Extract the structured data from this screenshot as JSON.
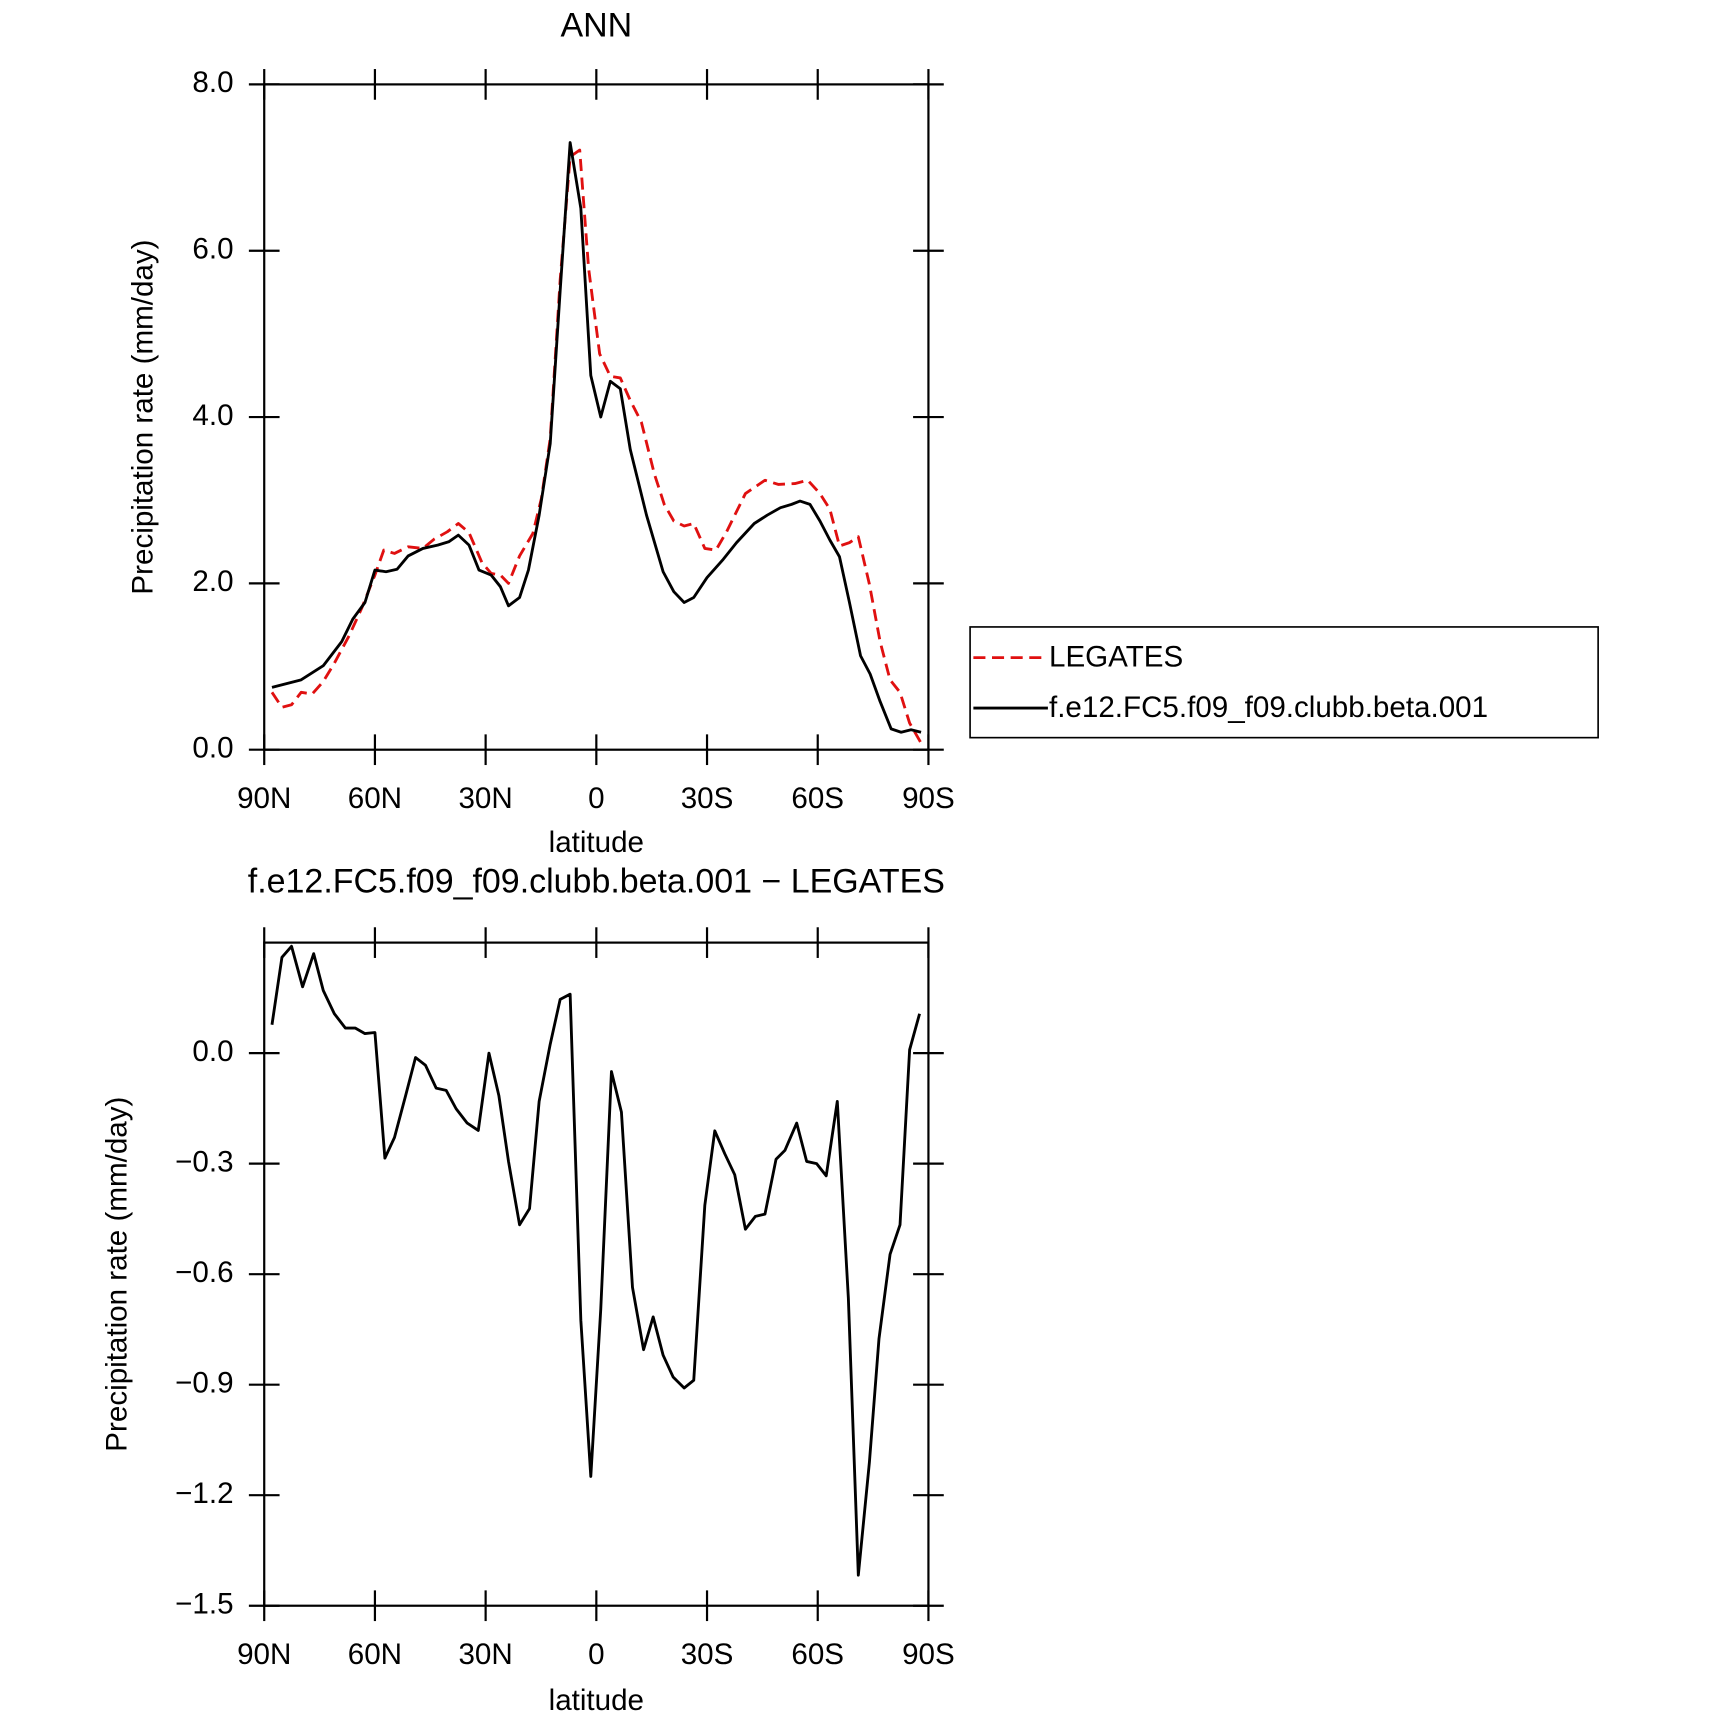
{
  "chart_data": [
    {
      "type": "line",
      "title": "ANN",
      "xlabel": "latitude",
      "ylabel": "Precipitation rate (mm/day)",
      "xlim": [
        90,
        -90
      ],
      "xticks": [
        {
          "value": 90,
          "label": "90N"
        },
        {
          "value": 60,
          "label": "60N"
        },
        {
          "value": 30,
          "label": "30N"
        },
        0,
        {
          "value": -30,
          "label": "30S"
        },
        {
          "value": -60,
          "label": "60S"
        },
        {
          "value": -90,
          "label": "90S"
        }
      ],
      "ylim": [
        0,
        8
      ],
      "yticks": [
        {
          "value": 0,
          "label": "0.0"
        },
        {
          "value": 2,
          "label": "2.0"
        },
        {
          "value": 4,
          "label": "4.0"
        },
        {
          "value": 6,
          "label": "6.0"
        },
        {
          "value": 8,
          "label": "8.0"
        }
      ],
      "legend": "right",
      "series": [
        {
          "name": "LEGATES",
          "color": "#e01010",
          "dash": "dashed",
          "x": [
            87.9,
            85.2,
            82.6,
            80,
            77,
            74,
            71,
            67,
            63.6,
            60,
            57.6,
            54.7,
            51,
            47,
            44,
            40.4,
            37.4,
            34.5,
            31,
            28.5,
            26,
            23.8,
            20.8,
            17.2,
            14.9,
            12.5,
            9.8,
            7.1,
            4.5,
            2.1,
            -0.9,
            -3.8,
            -6.5,
            -9.2,
            -12.2,
            -15.7,
            -18.4,
            -21,
            -23.8,
            -26.4,
            -29.4,
            -32.4,
            -35.3,
            -40.4,
            -45.7,
            -49.3,
            -53.8,
            -57.3,
            -60.6,
            -63.3,
            -65.9,
            -68.6,
            -71,
            -74,
            -76.9,
            -79.6,
            -82.3,
            -84.9,
            -88
          ],
          "values": [
            0.69,
            0.51,
            0.54,
            0.69,
            0.67,
            0.82,
            1.04,
            1.37,
            1.7,
            2.1,
            2.4,
            2.36,
            2.44,
            2.42,
            2.53,
            2.62,
            2.72,
            2.61,
            2.25,
            2.12,
            2.1,
            2.0,
            2.33,
            2.6,
            3.02,
            3.74,
            5.65,
            7.13,
            7.21,
            5.79,
            4.76,
            4.49,
            4.47,
            4.2,
            3.94,
            3.32,
            2.95,
            2.75,
            2.69,
            2.72,
            2.42,
            2.4,
            2.62,
            3.08,
            3.24,
            3.19,
            3.2,
            3.24,
            3.08,
            2.89,
            2.45,
            2.49,
            2.56,
            1.99,
            1.3,
            0.84,
            0.69,
            0.32,
            0.08
          ]
        },
        {
          "name": "f.e12.FC5.f09_f09.clubb.beta.001",
          "color": "#000000",
          "dash": "solid",
          "x": [
            87.9,
            80,
            74,
            69,
            66,
            62.7,
            60,
            57,
            54,
            51,
            47,
            43,
            40,
            37.4,
            34.5,
            31.8,
            28.5,
            26,
            23.8,
            20.8,
            18.4,
            15.5,
            12.5,
            9.8,
            7.1,
            4.2,
            1.5,
            -1.2,
            -3.8,
            -6.5,
            -9.2,
            -13.6,
            -18.1,
            -21,
            -23.8,
            -26.4,
            -30,
            -34.4,
            -38,
            -42.8,
            -46.3,
            -49.9,
            -52.9,
            -55.2,
            -57.9,
            -60.6,
            -63.3,
            -65.9,
            -68.6,
            -71.6,
            -74.2,
            -76.9,
            -79.9,
            -82.6,
            -85.3,
            -88
          ],
          "values": [
            0.75,
            0.84,
            1.01,
            1.3,
            1.57,
            1.77,
            2.16,
            2.14,
            2.17,
            2.33,
            2.42,
            2.46,
            2.5,
            2.58,
            2.46,
            2.16,
            2.1,
            1.96,
            1.73,
            1.83,
            2.16,
            2.82,
            3.68,
            5.52,
            7.3,
            6.51,
            4.5,
            4.0,
            4.43,
            4.34,
            3.61,
            2.82,
            2.14,
            1.9,
            1.77,
            1.83,
            2.07,
            2.29,
            2.49,
            2.72,
            2.82,
            2.91,
            2.95,
            2.99,
            2.95,
            2.75,
            2.52,
            2.32,
            1.77,
            1.13,
            0.91,
            0.58,
            0.25,
            0.21,
            0.24,
            0.21
          ]
        }
      ]
    },
    {
      "type": "line",
      "title": "f.e12.FC5.f09_f09.clubb.beta.001 − LEGATES",
      "xlabel": "latitude",
      "ylabel": "Precipitation rate (mm/day)",
      "xlim": [
        90,
        -90
      ],
      "xticks": [
        {
          "value": 90,
          "label": "90N"
        },
        {
          "value": 60,
          "label": "60N"
        },
        {
          "value": 30,
          "label": "30N"
        },
        0,
        {
          "value": -30,
          "label": "30S"
        },
        {
          "value": -60,
          "label": "60S"
        },
        {
          "value": -90,
          "label": "90S"
        }
      ],
      "ylim": [
        -1.5,
        0.3
      ],
      "yticks": [
        {
          "value": -1.5,
          "label": "−1.5"
        },
        {
          "value": -1.2,
          "label": "−1.2"
        },
        {
          "value": -0.9,
          "label": "−0.9"
        },
        {
          "value": -0.6,
          "label": "−0.6"
        },
        {
          "value": -0.3,
          "label": "−0.3"
        },
        {
          "value": 0,
          "label": "0.0"
        }
      ],
      "series": [
        {
          "color": "#000000",
          "dash": "solid",
          "x": [
            87.9,
            85.2,
            82.6,
            79.6,
            76.6,
            74,
            71,
            68,
            65.3,
            62.7,
            60,
            57.3,
            54.7,
            51.7,
            49,
            46.3,
            43.4,
            40.7,
            38,
            35,
            32,
            29.1,
            26.4,
            23.8,
            20.8,
            18.1,
            15.5,
            12.5,
            9.8,
            7.1,
            4.2,
            1.5,
            -1.2,
            -4.1,
            -6.8,
            -9.8,
            -12.8,
            -15.4,
            -18.1,
            -20.8,
            -23.8,
            -26.4,
            -29.4,
            -32.1,
            -34.8,
            -37.5,
            -40.4,
            -43.1,
            -45.7,
            -48.7,
            -51.1,
            -54.3,
            -57,
            -59.7,
            -62.3,
            -65.3,
            -68.3,
            -71,
            -74,
            -76.6,
            -79.6,
            -82.3,
            -84.9,
            -87.6
          ],
          "values": [
            0.077,
            0.26,
            0.29,
            0.18,
            0.27,
            0.17,
            0.107,
            0.068,
            0.068,
            0.053,
            0.056,
            -0.285,
            -0.229,
            -0.116,
            -0.012,
            -0.033,
            -0.095,
            -0.101,
            -0.151,
            -0.19,
            -0.21,
            0,
            -0.116,
            -0.294,
            -0.466,
            -0.422,
            -0.131,
            0.024,
            0.146,
            0.16,
            -0.725,
            -1.149,
            -0.695,
            -0.05,
            -0.16,
            -0.636,
            -0.805,
            -0.716,
            -0.82,
            -0.879,
            -0.909,
            -0.888,
            -0.413,
            -0.211,
            -0.273,
            -0.33,
            -0.478,
            -0.443,
            -0.437,
            -0.288,
            -0.264,
            -0.19,
            -0.294,
            -0.3,
            -0.333,
            -0.131,
            -0.665,
            -1.417,
            -1.111,
            -0.775,
            -0.546,
            -0.466,
            0.009,
            0.107
          ]
        }
      ]
    }
  ]
}
